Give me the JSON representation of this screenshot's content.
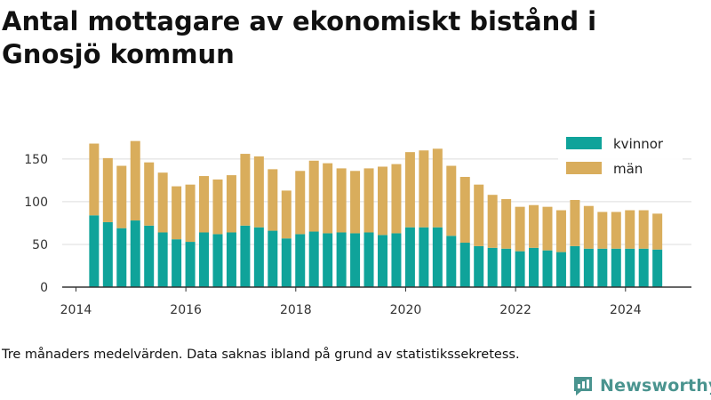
{
  "title": "Antal mottagare av ekonomiskt bistånd i Gnosjö kommun",
  "caption": "Tre månaders medelvärden. Data saknas ibland på grund av statistikssekretess.",
  "brand": {
    "name": "Newsworthy",
    "color": "#4a948f"
  },
  "colors": {
    "kvinnor": "#0fa39a",
    "man": "#d9ad5c",
    "axis": "#333333",
    "grid": "#dddddd"
  },
  "chart_data": {
    "type": "bar",
    "stacked": true,
    "title": "Antal mottagare av ekonomiskt bistånd i Gnosjö kommun",
    "xlabel": "",
    "ylabel": "",
    "xlim": [
      2013.75,
      2025.2
    ],
    "ylim": [
      0,
      180
    ],
    "yticks": [
      0,
      50,
      100,
      150
    ],
    "xticks": [
      2014,
      2016,
      2018,
      2020,
      2022,
      2024
    ],
    "grid": "horizontal",
    "legend_position": "top-right",
    "x": [
      2014.33,
      2014.58,
      2014.83,
      2015.08,
      2015.33,
      2015.58,
      2015.83,
      2016.08,
      2016.33,
      2016.58,
      2016.83,
      2017.08,
      2017.33,
      2017.58,
      2017.83,
      2018.08,
      2018.33,
      2018.58,
      2018.83,
      2019.08,
      2019.33,
      2019.58,
      2019.83,
      2020.08,
      2020.33,
      2020.58,
      2020.83,
      2021.08,
      2021.33,
      2021.58,
      2021.83,
      2022.08,
      2022.33,
      2022.58,
      2022.83,
      2023.08,
      2023.33,
      2023.58,
      2023.83,
      2024.08,
      2024.33,
      2024.58
    ],
    "series": [
      {
        "name": "kvinnor",
        "values": [
          84,
          76,
          69,
          78,
          72,
          64,
          56,
          53,
          64,
          62,
          64,
          72,
          70,
          66,
          57,
          62,
          65,
          63,
          64,
          63,
          64,
          61,
          63,
          70,
          70,
          70,
          60,
          52,
          48,
          46,
          45,
          42,
          46,
          43,
          41,
          48,
          45,
          45,
          45,
          45,
          45,
          44
        ]
      },
      {
        "name": "män",
        "values": [
          84,
          75,
          73,
          93,
          74,
          70,
          62,
          67,
          66,
          64,
          67,
          84,
          83,
          72,
          56,
          74,
          83,
          82,
          75,
          73,
          75,
          80,
          81,
          88,
          90,
          92,
          82,
          77,
          72,
          62,
          58,
          52,
          50,
          51,
          49,
          54,
          50,
          43,
          43,
          45,
          45,
          42
        ]
      }
    ]
  }
}
